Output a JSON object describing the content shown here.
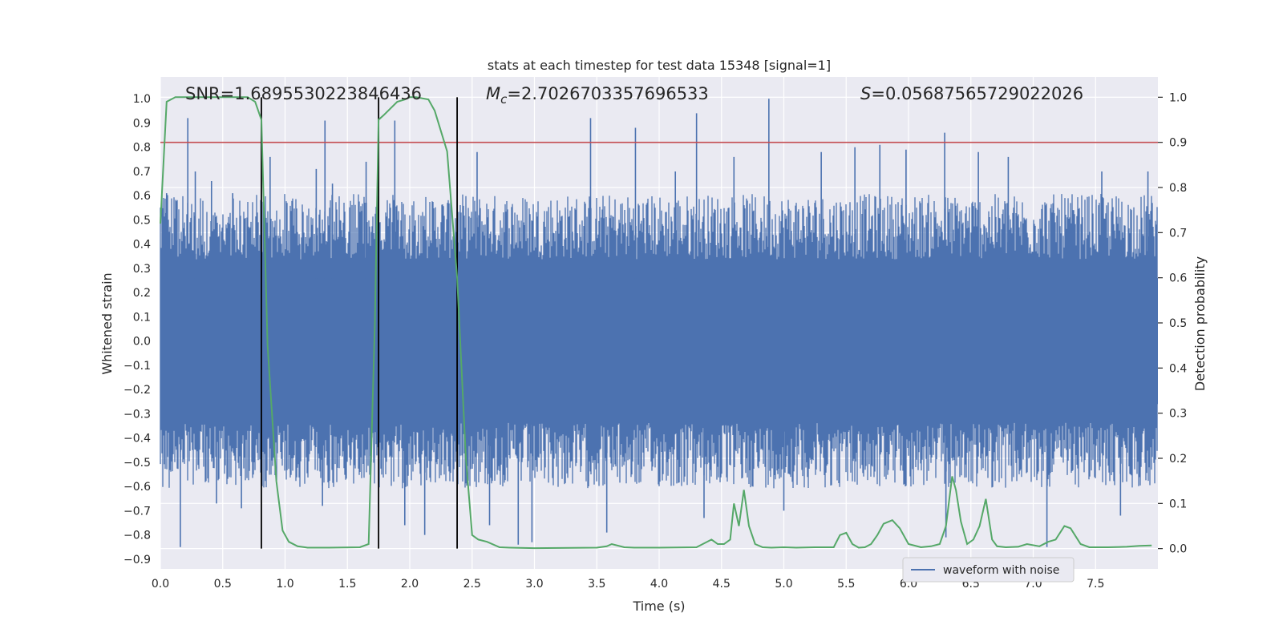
{
  "chart_data": {
    "type": "line",
    "title": "stats at each timestep for test data 15348 [signal=1]",
    "xlabel": "Time (s)",
    "ylabel_left": "Whitened strain",
    "ylabel_right": "Detection probability",
    "xlim": [
      0,
      8
    ],
    "ylim_left": [
      -0.94,
      1.09
    ],
    "ylim_right": [
      -0.045,
      1.045
    ],
    "x_ticks": [
      "0.0",
      "0.5",
      "1.0",
      "1.5",
      "2.0",
      "2.5",
      "3.0",
      "3.5",
      "4.0",
      "4.5",
      "5.0",
      "5.5",
      "6.0",
      "6.5",
      "7.0",
      "7.5"
    ],
    "y_left_ticks": [
      "-0.9",
      "-0.8",
      "-0.7",
      "-0.6",
      "-0.5",
      "-0.4",
      "-0.3",
      "-0.2",
      "-0.1",
      "0.0",
      "0.1",
      "0.2",
      "0.3",
      "0.4",
      "0.5",
      "0.6",
      "0.7",
      "0.8",
      "0.9",
      "1.0"
    ],
    "y_right_ticks": [
      "0.0",
      "0.1",
      "0.2",
      "0.3",
      "0.4",
      "0.5",
      "0.6",
      "0.7",
      "0.8",
      "0.9",
      "1.0"
    ],
    "annotations": {
      "snr": "SNR=1.6895530223846436",
      "mc_symbol": "M",
      "mc_sub": "c",
      "mc_value": "=2.7026703357696533",
      "s_symbol": "S",
      "s_value": "=0.05687565729022026"
    },
    "threshold_right": 0.9,
    "vertical_markers_x": [
      0.81,
      1.75,
      2.38
    ],
    "legend": {
      "label": "waveform with noise",
      "placement": "lower-right"
    },
    "grid": true,
    "series": [
      {
        "name": "waveform with noise",
        "axis": "left",
        "color": "#4c72b0",
        "kind": "noise-envelope",
        "envelope_y": [
          -0.45,
          0.45
        ],
        "spikes": [
          {
            "x": 0.05,
            "y": 0.61
          },
          {
            "x": 0.16,
            "y": -0.85
          },
          {
            "x": 0.22,
            "y": 0.92
          },
          {
            "x": 0.28,
            "y": 0.7
          },
          {
            "x": 0.41,
            "y": 0.66
          },
          {
            "x": 0.45,
            "y": -0.67
          },
          {
            "x": 0.58,
            "y": 0.61
          },
          {
            "x": 0.65,
            "y": -0.69
          },
          {
            "x": 0.88,
            "y": 0.76
          },
          {
            "x": 1.25,
            "y": 0.71
          },
          {
            "x": 1.32,
            "y": 0.91
          },
          {
            "x": 1.3,
            "y": -0.68
          },
          {
            "x": 1.38,
            "y": 0.65
          },
          {
            "x": 1.65,
            "y": 0.74
          },
          {
            "x": 1.88,
            "y": 0.91
          },
          {
            "x": 1.96,
            "y": -0.76
          },
          {
            "x": 2.12,
            "y": -0.8
          },
          {
            "x": 2.54,
            "y": 0.78
          },
          {
            "x": 2.64,
            "y": -0.76
          },
          {
            "x": 2.87,
            "y": -0.84
          },
          {
            "x": 2.98,
            "y": -0.83
          },
          {
            "x": 3.45,
            "y": 0.92
          },
          {
            "x": 3.58,
            "y": -0.79
          },
          {
            "x": 3.81,
            "y": 0.88
          },
          {
            "x": 4.13,
            "y": 0.7
          },
          {
            "x": 4.3,
            "y": 0.94
          },
          {
            "x": 4.36,
            "y": -0.73
          },
          {
            "x": 4.6,
            "y": 0.76
          },
          {
            "x": 4.88,
            "y": 1.0
          },
          {
            "x": 5.0,
            "y": -0.7
          },
          {
            "x": 5.3,
            "y": 0.78
          },
          {
            "x": 5.57,
            "y": 0.8
          },
          {
            "x": 5.77,
            "y": 0.81
          },
          {
            "x": 5.98,
            "y": 0.79
          },
          {
            "x": 6.29,
            "y": 0.86
          },
          {
            "x": 6.3,
            "y": -0.81
          },
          {
            "x": 6.56,
            "y": 0.78
          },
          {
            "x": 6.8,
            "y": 0.76
          },
          {
            "x": 7.11,
            "y": -0.85
          },
          {
            "x": 7.55,
            "y": 0.7
          },
          {
            "x": 7.7,
            "y": -0.72
          },
          {
            "x": 7.92,
            "y": 0.7
          }
        ]
      },
      {
        "name": "",
        "axis": "right",
        "color": "#55a868",
        "x": [
          0.0,
          0.05,
          0.12,
          0.3,
          0.6,
          0.7,
          0.76,
          0.81,
          0.86,
          0.93,
          0.98,
          1.03,
          1.1,
          1.18,
          1.35,
          1.6,
          1.67,
          1.72,
          1.75,
          1.79,
          1.9,
          1.96,
          2.0,
          2.05,
          2.15,
          2.2,
          2.3,
          2.38,
          2.45,
          2.5,
          2.55,
          2.62,
          2.72,
          2.8,
          3.0,
          3.5,
          3.58,
          3.62,
          3.72,
          3.8,
          4.0,
          4.3,
          4.35,
          4.42,
          4.47,
          4.52,
          4.57,
          4.6,
          4.64,
          4.68,
          4.72,
          4.77,
          4.83,
          4.9,
          5.0,
          5.1,
          5.25,
          5.4,
          5.45,
          5.5,
          5.55,
          5.6,
          5.65,
          5.7,
          5.75,
          5.8,
          5.87,
          5.93,
          6.0,
          6.1,
          6.18,
          6.25,
          6.3,
          6.35,
          6.38,
          6.42,
          6.47,
          6.52,
          6.57,
          6.62,
          6.67,
          6.71,
          6.78,
          6.88,
          6.95,
          7.05,
          7.12,
          7.18,
          7.25,
          7.3,
          7.38,
          7.45,
          7.6,
          7.75,
          7.85,
          7.95
        ],
        "values": [
          0.72,
          0.99,
          1.0,
          1.0,
          1.0,
          1.0,
          0.99,
          0.95,
          0.45,
          0.15,
          0.04,
          0.015,
          0.005,
          0.002,
          0.002,
          0.003,
          0.01,
          0.5,
          0.95,
          0.96,
          0.99,
          0.995,
          1.0,
          1.0,
          0.995,
          0.97,
          0.88,
          0.6,
          0.2,
          0.03,
          0.02,
          0.015,
          0.003,
          0.002,
          0.001,
          0.002,
          0.005,
          0.01,
          0.003,
          0.002,
          0.002,
          0.003,
          0.01,
          0.02,
          0.01,
          0.01,
          0.02,
          0.1,
          0.05,
          0.13,
          0.05,
          0.01,
          0.003,
          0.002,
          0.003,
          0.002,
          0.003,
          0.003,
          0.03,
          0.035,
          0.01,
          0.002,
          0.003,
          0.01,
          0.03,
          0.055,
          0.063,
          0.045,
          0.01,
          0.003,
          0.005,
          0.01,
          0.05,
          0.16,
          0.13,
          0.06,
          0.01,
          0.02,
          0.05,
          0.11,
          0.02,
          0.005,
          0.003,
          0.004,
          0.01,
          0.005,
          0.015,
          0.02,
          0.05,
          0.045,
          0.01,
          0.003,
          0.003,
          0.004,
          0.006,
          0.007
        ]
      }
    ]
  }
}
